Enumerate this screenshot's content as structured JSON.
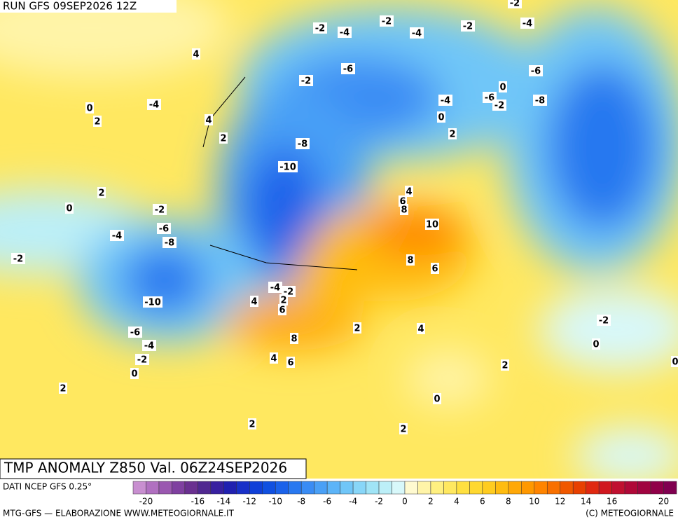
{
  "header": {
    "run": "RUN GFS 09SEP2026 12Z"
  },
  "map": {
    "contour_labels": [
      -2,
      -4,
      -2,
      -4,
      -2,
      -4,
      -2,
      4,
      -6,
      -2,
      -6,
      -8,
      -4,
      -6,
      -2,
      0,
      0,
      2,
      0,
      -4,
      2,
      4,
      2,
      -8,
      -10,
      2,
      0,
      -2,
      4,
      6,
      8,
      10,
      -6,
      -4,
      -8,
      -2,
      8,
      6,
      -4,
      -2,
      2,
      4,
      6,
      -10,
      2,
      4,
      -2,
      8,
      -6,
      -4,
      0,
      -2,
      4,
      6,
      2,
      0,
      0,
      2,
      0,
      2,
      2
    ]
  },
  "footer": {
    "title": "TMP ANOMALY Z850 Val. 06Z24SEP2026",
    "source": "DATI NCEP GFS 0.25°",
    "credit": "MTG-GFS — ELABORAZIONE WWW.METEOGIORNALE.IT",
    "copyright": "(C) METEOGIORNALE"
  },
  "colorbar": {
    "xlim": [
      -21,
      21
    ],
    "ticks": [
      -20,
      -16,
      -14,
      -12,
      -10,
      -8,
      -6,
      -4,
      -2,
      0,
      2,
      4,
      6,
      8,
      10,
      12,
      14,
      16,
      20
    ],
    "colors": [
      "#c88fd0",
      "#b070c0",
      "#9a58b0",
      "#7f40a0",
      "#6a3090",
      "#502890",
      "#3820a0",
      "#2020b0",
      "#1830c8",
      "#1040d8",
      "#1050e0",
      "#1a62ea",
      "#2878f0",
      "#3a8cf4",
      "#4aa0f6",
      "#5cb4f8",
      "#70c6f8",
      "#88d6f8",
      "#a0e4f6",
      "#bceff8",
      "#d8f8fa",
      "#fffad0",
      "#fff4a8",
      "#fff080",
      "#ffe860",
      "#ffe040",
      "#ffd830",
      "#ffcc20",
      "#ffbc10",
      "#ffa808",
      "#ff9800",
      "#ff8400",
      "#f87000",
      "#f05800",
      "#e84000",
      "#e02810",
      "#d01820",
      "#c01030",
      "#b00838",
      "#a00440",
      "#900048",
      "#800050"
    ]
  }
}
